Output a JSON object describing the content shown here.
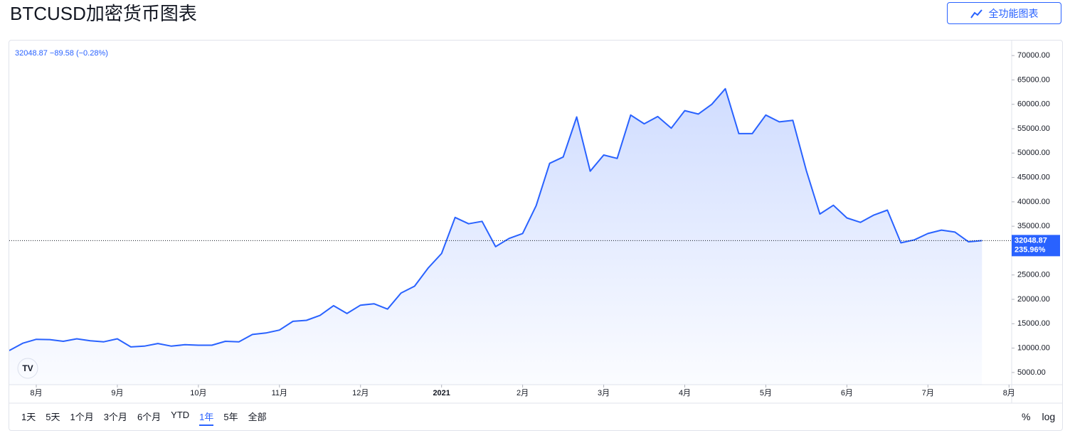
{
  "header": {
    "title": "BTCUSD加密货币图表",
    "button": "全功能图表"
  },
  "chart_data": {
    "type": "area",
    "color": "#2962ff",
    "grid": false,
    "legend_text": "32048.87 −89.58 (−0.28%)",
    "change_label": "235.96%",
    "categories": [
      null,
      null,
      "8月",
      null,
      null,
      null,
      null,
      null,
      "9月",
      null,
      null,
      null,
      null,
      null,
      "10月",
      null,
      null,
      null,
      null,
      null,
      "11月",
      null,
      null,
      null,
      null,
      null,
      "12月",
      null,
      null,
      null,
      null,
      null,
      "2021",
      null,
      null,
      null,
      null,
      null,
      "2月",
      null,
      null,
      null,
      null,
      null,
      "3月",
      null,
      null,
      null,
      null,
      null,
      "4月",
      null,
      null,
      null,
      null,
      null,
      "5月",
      null,
      null,
      null,
      null,
      null,
      "6月",
      null,
      null,
      null,
      null,
      null,
      "7月",
      null,
      null,
      null,
      null,
      null,
      "8月"
    ],
    "values": [
      9500,
      11000,
      11800,
      11750,
      11400,
      11900,
      11500,
      11300,
      11900,
      10250,
      10400,
      10950,
      10400,
      10700,
      10600,
      10600,
      11400,
      11300,
      12800,
      13100,
      13700,
      15500,
      15700,
      16700,
      18700,
      17100,
      18800,
      19100,
      18000,
      21300,
      22700,
      26400,
      29400,
      36800,
      35500,
      36000,
      30800,
      32500,
      33500,
      39200,
      47900,
      49200,
      57400,
      46300,
      49600,
      48900,
      57800,
      56000,
      57500,
      55100,
      58700,
      58000,
      60000,
      63200,
      54000,
      54000,
      57800,
      56400,
      56700,
      46400,
      37500,
      39300,
      36700,
      35800,
      37300,
      38300,
      31600,
      32200,
      33500,
      34200,
      33800,
      31800,
      32048.87,
      null,
      null
    ],
    "ylim": [
      2500,
      72500
    ],
    "yticks": [
      {
        "value": 5000,
        "label": "5000.00"
      },
      {
        "value": 10000,
        "label": "10000.00"
      },
      {
        "value": 15000,
        "label": "15000.00"
      },
      {
        "value": 20000,
        "label": "20000.00"
      },
      {
        "value": 25000,
        "label": "25000.00"
      },
      {
        "value": 30000,
        "label": "30000.00"
      },
      {
        "value": 35000,
        "label": "35000.00"
      },
      {
        "value": 40000,
        "label": "40000.00"
      },
      {
        "value": 45000,
        "label": "45000.00"
      },
      {
        "value": 50000,
        "label": "50000.00"
      },
      {
        "value": 55000,
        "label": "55000.00"
      },
      {
        "value": 60000,
        "label": "60000.00"
      },
      {
        "value": 65000,
        "label": "65000.00"
      },
      {
        "value": 70000,
        "label": "70000.00"
      }
    ]
  },
  "toolbar": {
    "ranges": [
      "1天",
      "5天",
      "1个月",
      "3个月",
      "6个月",
      "YTD",
      "1年",
      "5年",
      "全部"
    ],
    "active": "1年",
    "options": [
      "%",
      "log"
    ]
  }
}
